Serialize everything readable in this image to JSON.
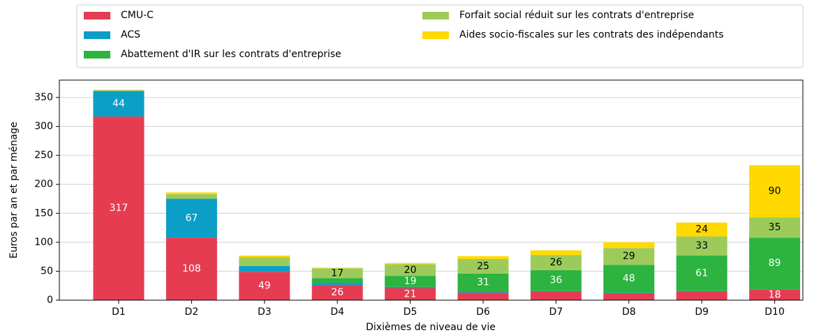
{
  "chart_data": {
    "type": "stacked_bar",
    "x_label": "Dixièmes de niveau de vie",
    "y_label": "Euros par an et par ménage",
    "categories": [
      "D1",
      "D2",
      "D3",
      "D4",
      "D5",
      "D6",
      "D7",
      "D8",
      "D9",
      "D10"
    ],
    "series": [
      {
        "name": "CMU-C",
        "color": "#e63c52",
        "label_color": "#ffffff",
        "values": [
          317,
          108,
          49,
          26,
          21,
          13,
          15,
          12,
          15,
          18
        ],
        "value_labels": [
          "317",
          "108",
          "49",
          "26",
          "21",
          null,
          null,
          null,
          null,
          "18"
        ]
      },
      {
        "name": "ACS",
        "color": "#0b9ec6",
        "label_color": "#ffffff",
        "values": [
          44,
          67,
          10,
          4,
          2,
          2,
          1,
          1,
          1,
          1
        ],
        "value_labels": [
          "44",
          "67",
          null,
          null,
          null,
          null,
          null,
          null,
          null,
          null
        ]
      },
      {
        "name": "Abattement d'IR sur les contrats d'entreprise",
        "color": "#2db33f",
        "label_color": "#ffffff",
        "values": [
          0,
          0,
          0,
          8,
          19,
          31,
          36,
          48,
          61,
          89
        ],
        "value_labels": [
          null,
          null,
          null,
          null,
          "19",
          "31",
          "36",
          "48",
          "61",
          "89"
        ]
      },
      {
        "name": "Forfait social réduit sur les contrats d'entreprise",
        "color": "#9dcb5b",
        "label_color": "#000000",
        "values": [
          2,
          8,
          15,
          17,
          20,
          25,
          26,
          29,
          33,
          35
        ],
        "value_labels": [
          null,
          null,
          null,
          "17",
          "20",
          "25",
          "26",
          "29",
          "33",
          "35"
        ]
      },
      {
        "name": "Aides socio-fiscales sur les contrats des indépendants",
        "color": "#ffd900",
        "label_color": "#000000",
        "values": [
          0,
          3,
          3,
          1,
          2,
          5,
          8,
          10,
          24,
          90
        ],
        "value_labels": [
          null,
          null,
          null,
          null,
          null,
          null,
          null,
          null,
          "24",
          "90"
        ]
      }
    ],
    "ylim": [
      0,
      380
    ],
    "yticks": [
      0,
      50,
      100,
      150,
      200,
      250,
      300,
      350
    ],
    "grid": true,
    "legend": "top"
  }
}
